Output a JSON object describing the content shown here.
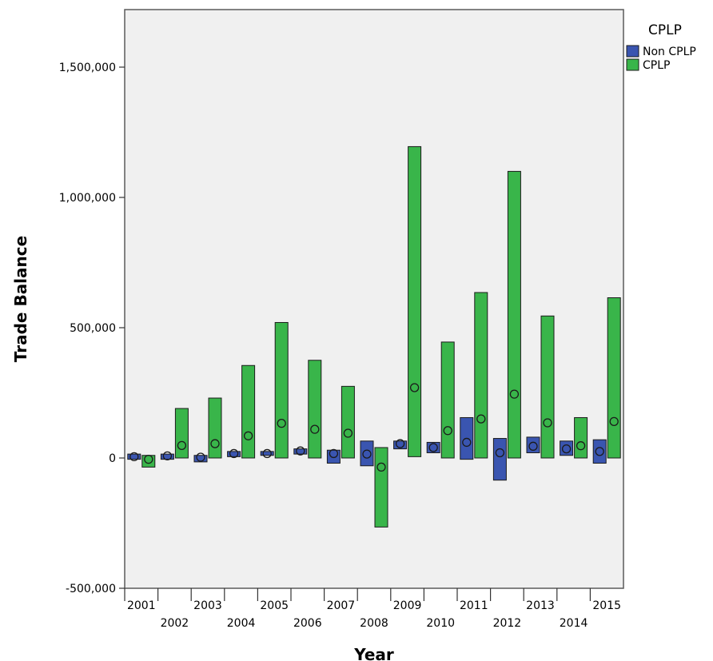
{
  "chart_data": {
    "type": "bar",
    "title": "",
    "xlabel": "Year",
    "ylabel": "Trade Balance",
    "ylim": [
      -500000,
      1700000
    ],
    "yticks": [
      -500000,
      0,
      500000,
      1000000,
      1500000
    ],
    "ytick_labels": [
      "-500,000",
      "0",
      "500,000",
      "1,000,000",
      "1,500,000"
    ],
    "grid": false,
    "legend": {
      "title": "CPLP",
      "placement": "right"
    },
    "categories": [
      "2001",
      "2002",
      "2003",
      "2004",
      "2005",
      "2006",
      "2007",
      "2008",
      "2009",
      "2010",
      "2011",
      "2012",
      "2013",
      "2014",
      "2015"
    ],
    "series": [
      {
        "name": "Non CPLP",
        "color": "#3a55b0",
        "low": [
          -5000,
          -5000,
          -15000,
          5000,
          10000,
          15000,
          -20000,
          -30000,
          35000,
          20000,
          -5000,
          -85000,
          20000,
          10000,
          -20000
        ],
        "high": [
          15000,
          15000,
          10000,
          25000,
          25000,
          35000,
          30000,
          65000,
          65000,
          60000,
          155000,
          75000,
          80000,
          65000,
          70000
        ],
        "mean": [
          5000,
          8000,
          3000,
          17000,
          17000,
          27000,
          17000,
          15000,
          55000,
          40000,
          60000,
          20000,
          45000,
          35000,
          25000
        ]
      },
      {
        "name": "CPLP",
        "color": "#39b54a",
        "low": [
          -35000,
          0,
          0,
          0,
          0,
          0,
          0,
          -265000,
          5000,
          0,
          0,
          0,
          0,
          0,
          0
        ],
        "high": [
          10000,
          190000,
          230000,
          355000,
          520000,
          375000,
          275000,
          40000,
          1195000,
          445000,
          635000,
          1100000,
          545000,
          155000,
          615000
        ],
        "mean": [
          -5000,
          48000,
          55000,
          85000,
          133000,
          110000,
          95000,
          -35000,
          270000,
          105000,
          150000,
          245000,
          135000,
          47000,
          140000
        ]
      }
    ]
  }
}
